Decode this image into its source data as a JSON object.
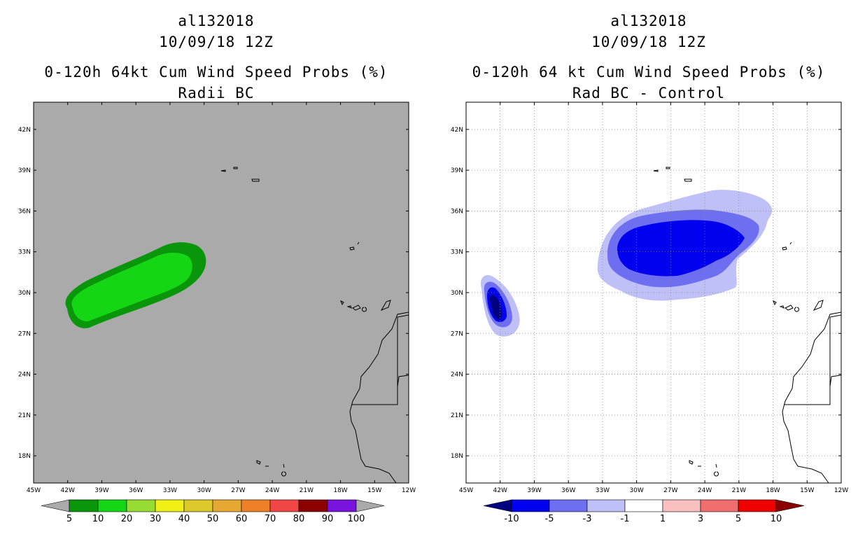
{
  "panels": [
    {
      "line1": "al132018",
      "line2": "10/09/18 12Z",
      "line3": "0-120h 64kt Cum Wind Speed Probs (%)",
      "line4": "Radii BC",
      "background": "#aaaaaa",
      "colorbar_labels": [
        "5",
        "10",
        "20",
        "30",
        "40",
        "50",
        "60",
        "70",
        "80",
        "90",
        "100"
      ],
      "colorbar_colors": [
        "#0a960a",
        "#14d614",
        "#96dc32",
        "#f0f014",
        "#dcc828",
        "#e6a832",
        "#ee8028",
        "#f04646",
        "#8b0000",
        "#7814dc"
      ]
    },
    {
      "line1": "al132018",
      "line2": "10/09/18 12Z",
      "line3": "0-120h 64 kt Cum Wind Speed Probs (%)",
      "line4": "Rad BC - Control",
      "background": "#ffffff",
      "colorbar_labels": [
        "-10",
        "-5",
        "-3",
        "-1",
        "1",
        "3",
        "5",
        "10"
      ],
      "colorbar_colors": [
        "#0000ee",
        "#6e6ef0",
        "#c0c0f8",
        "#ffffff",
        "#f8c0c0",
        "#f06e6e",
        "#ee0000"
      ]
    }
  ],
  "axes": {
    "lat_labels": [
      "42N",
      "39N",
      "36N",
      "33N",
      "30N",
      "27N",
      "24N",
      "21N",
      "18N"
    ],
    "lon_labels": [
      "45W",
      "42W",
      "39W",
      "36W",
      "33W",
      "30W",
      "27W",
      "24W",
      "21W",
      "18W",
      "15W",
      "12W"
    ]
  },
  "chart_data": {
    "type": "heatmap",
    "extent": {
      "lon": [
        -45,
        -12
      ],
      "lat": [
        16,
        44
      ]
    },
    "panels": [
      {
        "title": "0-120h 64kt Cum Wind Speed Probs (%)",
        "subtitle": "Radii BC",
        "levels": [
          5,
          10,
          20,
          30,
          40,
          50,
          60,
          70,
          80,
          90,
          100
        ],
        "regions": [
          {
            "level_range": [
              5,
              10
            ],
            "center": [
              -35.0,
              30.6
            ],
            "max_level_range": [
              10,
              20
            ]
          }
        ]
      },
      {
        "title": "0-120h 64 kt Cum Wind Speed Probs (%)",
        "subtitle": "Rad BC - Control",
        "levels": [
          -10,
          -5,
          -3,
          -1,
          1,
          3,
          5,
          10
        ],
        "regions": [
          {
            "feature": "negative difference west",
            "center": [
              -42.3,
              28.6
            ],
            "min_level": -10
          },
          {
            "feature": "negative difference central",
            "center": [
              -27.5,
              32.2
            ],
            "min_level": -10
          }
        ]
      }
    ]
  }
}
